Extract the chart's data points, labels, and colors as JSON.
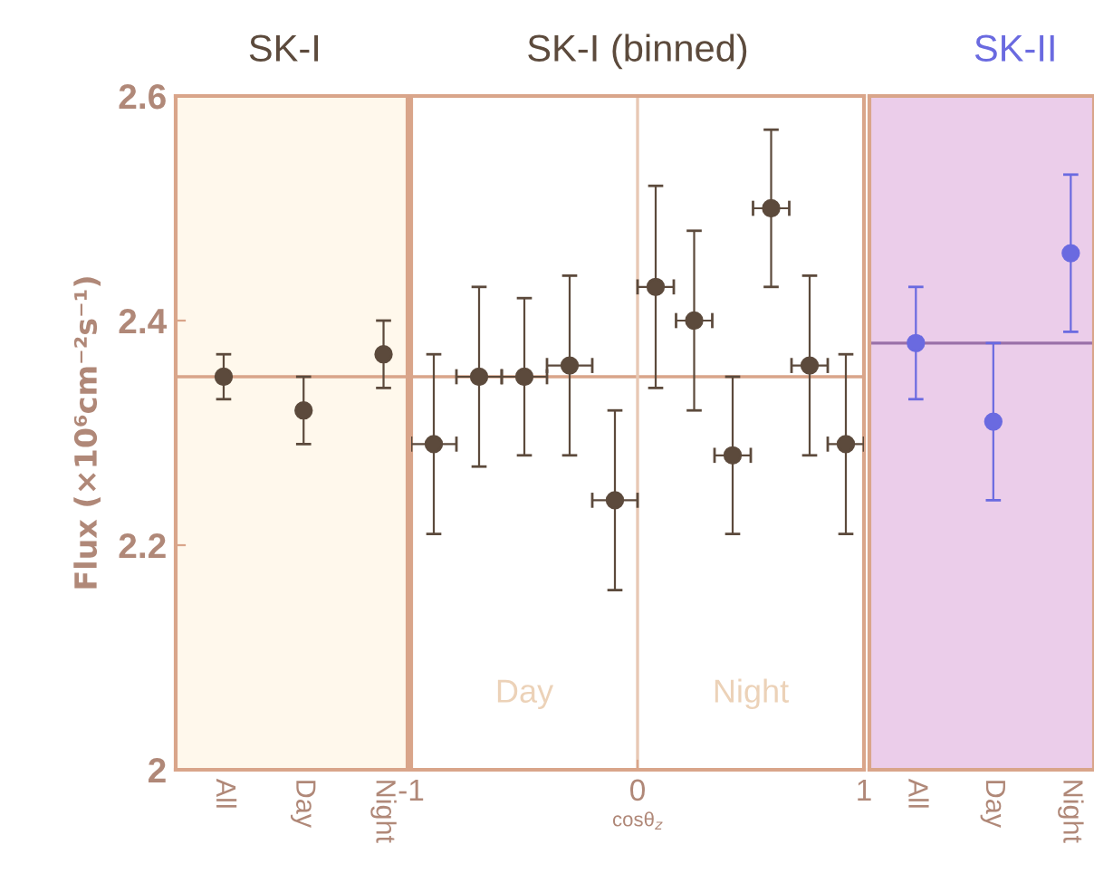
{
  "chart_data": [
    {
      "type": "scatter",
      "title": "SK-I",
      "ylabel": "Flux (×10⁶cm⁻²s⁻¹)",
      "categories": [
        "All",
        "Day",
        "Night"
      ],
      "ylim": [
        2,
        2.6
      ],
      "yticks": [
        2,
        2.2,
        2.4,
        2.6
      ],
      "marker": "circle",
      "series": [
        {
          "color": "#5c4a3c",
          "values": [
            2.35,
            2.32,
            2.37
          ],
          "errors": [
            0.02,
            0.03,
            0.03
          ]
        }
      ],
      "ref_lines": [
        {
          "axis": "y",
          "value": 2.35,
          "color": "#d9a58a"
        }
      ],
      "bands": [
        {
          "axis": "y",
          "from": 2,
          "to": 2.6,
          "color": "#fff8ec"
        }
      ]
    },
    {
      "type": "scatter",
      "title": "SK-I (binned)",
      "xlabel": "cosθ$_{z}$",
      "xlim": [
        -1,
        1
      ],
      "xticks": [
        -1,
        0,
        1
      ],
      "ylim": [
        2,
        2.6
      ],
      "tick_labels": "x",
      "marker": "circle",
      "annotations": [
        "Day",
        "Night"
      ],
      "series": [
        {
          "color": "#5c4a3c",
          "x": [
            -0.9,
            -0.7,
            -0.5,
            -0.3,
            -0.1,
            0.08,
            0.25,
            0.42,
            0.59,
            0.76,
            0.92
          ],
          "values": [
            2.29,
            2.35,
            2.35,
            2.36,
            2.24,
            2.43,
            2.4,
            2.28,
            2.5,
            2.36,
            2.29
          ],
          "errors": [
            0.08,
            0.08,
            0.07,
            0.08,
            0.08,
            0.09,
            0.08,
            0.07,
            0.07,
            0.08,
            0.08
          ],
          "xerrors": [
            0.1,
            0.1,
            0.1,
            0.1,
            0.1,
            0.08,
            0.08,
            0.08,
            0.08,
            0.08,
            0.08
          ]
        }
      ],
      "ref_lines": [
        {
          "axis": "y",
          "value": 2.35,
          "color": "#d9a58a"
        },
        {
          "axis": "x",
          "value": 0,
          "color": "#e8c8b4"
        }
      ]
    },
    {
      "type": "scatter",
      "title": "SK-II",
      "categories": [
        "All",
        "Day",
        "Night"
      ],
      "ylim": [
        2,
        2.6
      ],
      "tick_labels": "x",
      "marker": "circle",
      "series": [
        {
          "color": "#6a6ae0",
          "values": [
            2.38,
            2.31,
            2.46
          ],
          "errors": [
            0.05,
            0.07,
            0.07
          ]
        }
      ],
      "ref_lines": [
        {
          "axis": "y",
          "value": 2.38,
          "color": "#9a70a8"
        }
      ],
      "bands": [
        {
          "axis": "y",
          "from": 2,
          "to": 2.6,
          "color": "#ebcdea"
        }
      ]
    }
  ]
}
